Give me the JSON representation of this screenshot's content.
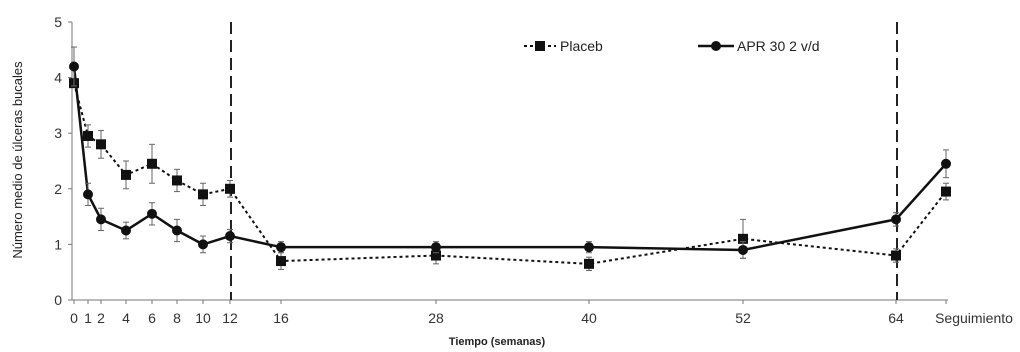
{
  "chart_data": {
    "type": "line",
    "xlabel": "Tiempo (semanas)",
    "ylabel": "Número medio de úlceras bucales",
    "ylim": [
      0,
      5
    ],
    "yticks": [
      "0",
      "1",
      "2",
      "3",
      "4",
      "5"
    ],
    "x_tick_labels": [
      "0",
      "1",
      "2",
      "4",
      "6",
      "8",
      "10",
      "12",
      "16",
      "28",
      "40",
      "52",
      "64",
      "Seguimiento"
    ],
    "vertical_reference_lines_at": [
      "12",
      "64"
    ],
    "legend_position": "top-right",
    "series": [
      {
        "name": "Placeb",
        "line_style": "dotted",
        "marker": "square",
        "color": "#111111",
        "points": [
          {
            "x": "0",
            "y": 3.9
          },
          {
            "x": "1",
            "y": 2.95,
            "err": 0.2
          },
          {
            "x": "2",
            "y": 2.8,
            "err": 0.25
          },
          {
            "x": "4",
            "y": 2.25,
            "err": 0.25
          },
          {
            "x": "6",
            "y": 2.45,
            "err": 0.35
          },
          {
            "x": "8",
            "y": 2.15,
            "err": 0.2
          },
          {
            "x": "10",
            "y": 1.9,
            "err": 0.2
          },
          {
            "x": "12",
            "y": 2.0,
            "err": 0.15
          },
          {
            "x": "16",
            "y": 0.7,
            "err": 0.15
          },
          {
            "x": "28",
            "y": 0.8,
            "err": 0.15
          },
          {
            "x": "40",
            "y": 0.65,
            "err": 0.12
          },
          {
            "x": "52",
            "y": 1.1,
            "err": 0.35
          },
          {
            "x": "64",
            "y": 0.8,
            "err": 0.12
          },
          {
            "x": "Seguimiento",
            "y": 1.95,
            "err": 0.15
          }
        ]
      },
      {
        "name": "APR 30 2 v/d",
        "line_style": "solid",
        "marker": "circle",
        "color": "#111111",
        "points": [
          {
            "x": "0",
            "y": 4.2,
            "err": 0.35
          },
          {
            "x": "1",
            "y": 1.9,
            "err": 0.2
          },
          {
            "x": "2",
            "y": 1.45,
            "err": 0.2
          },
          {
            "x": "4",
            "y": 1.25,
            "err": 0.15
          },
          {
            "x": "6",
            "y": 1.55,
            "err": 0.2
          },
          {
            "x": "8",
            "y": 1.25,
            "err": 0.2
          },
          {
            "x": "10",
            "y": 1.0,
            "err": 0.15
          },
          {
            "x": "12",
            "y": 1.15,
            "err": 0.12
          },
          {
            "x": "16",
            "y": 0.95,
            "err": 0.1
          },
          {
            "x": "28",
            "y": 0.95,
            "err": 0.1
          },
          {
            "x": "40",
            "y": 0.95,
            "err": 0.1
          },
          {
            "x": "52",
            "y": 0.9,
            "err": 0.15
          },
          {
            "x": "64",
            "y": 1.45,
            "err": 0.12
          },
          {
            "x": "Seguimiento",
            "y": 2.45,
            "err": 0.25
          }
        ]
      }
    ]
  }
}
